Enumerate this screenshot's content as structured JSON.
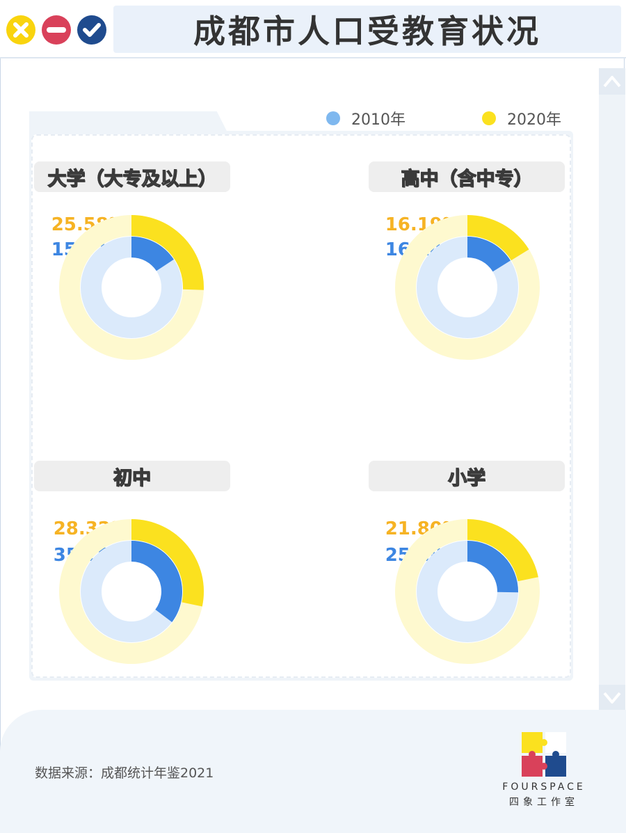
{
  "title": "成都市人口受教育状况",
  "window_buttons": [
    {
      "name": "close",
      "color": "#f9d40e"
    },
    {
      "name": "minimize",
      "color": "#d9415a"
    },
    {
      "name": "confirm",
      "color": "#1f4b8e"
    }
  ],
  "legend": [
    {
      "label": "2010年",
      "color": "#7fb8ef"
    },
    {
      "label": "2020年",
      "color": "#fbe11f"
    }
  ],
  "colors": {
    "y2010": "#3d86e2",
    "y2010_track": "#dbeafb",
    "y2020": "#fbe11f",
    "y2020_track": "#fef9cf",
    "pct2010_text": "#3d86e2",
    "pct2020_text": "#f6b324"
  },
  "chart_data": {
    "type": "pie",
    "categories": [
      "大学（大专及以上）",
      "高中（含中专）",
      "初中",
      "小学"
    ],
    "series": [
      {
        "name": "2010年",
        "values": [
          15.71,
          16.14,
          35.29,
          25.28
        ]
      },
      {
        "name": "2020年",
        "values": [
          25.58,
          16.19,
          28.32,
          21.8
        ]
      }
    ],
    "display_labels": {
      "2010": [
        "15.71%",
        "16.14%",
        "35.29%",
        "25.28%"
      ],
      "2020": [
        "25.58%",
        "16.19%",
        "28.32%",
        "21.80%"
      ]
    },
    "legend_position": "top-right"
  },
  "footer": {
    "source": "数据来源：成都统计年鉴2021",
    "brand_en": "FOURSPACE",
    "brand_cn": "四象工作室"
  }
}
